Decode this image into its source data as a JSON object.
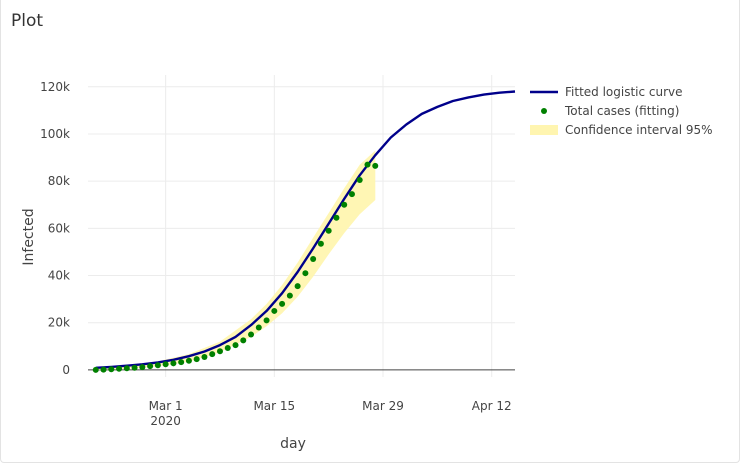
{
  "panel": {
    "title": "Plot",
    "accent_color": "#e8472f"
  },
  "chart_data": {
    "type": "line",
    "xlabel": "day",
    "ylabel": "Infected",
    "x_ticks": [
      {
        "date": "2020-03-01",
        "label": "Mar 1",
        "sublabel": "2020"
      },
      {
        "date": "2020-03-15",
        "label": "Mar 15",
        "sublabel": ""
      },
      {
        "date": "2020-03-29",
        "label": "Mar 29",
        "sublabel": ""
      },
      {
        "date": "2020-04-12",
        "label": "Apr 12",
        "sublabel": ""
      }
    ],
    "xlim": [
      "2020-02-20",
      "2020-04-15"
    ],
    "y_ticks": [
      {
        "value": 0,
        "label": "0"
      },
      {
        "value": 20000,
        "label": "20k"
      },
      {
        "value": 40000,
        "label": "40k"
      },
      {
        "value": 60000,
        "label": "60k"
      },
      {
        "value": 80000,
        "label": "80k"
      },
      {
        "value": 100000,
        "label": "100k"
      },
      {
        "value": 120000,
        "label": "120k"
      }
    ],
    "ylim": [
      -3000,
      125000
    ],
    "grid": true,
    "legend_position": "right",
    "series": [
      {
        "name": "Fitted logistic curve",
        "kind": "line",
        "color": "#00008b",
        "x": [
          "2020-02-21",
          "2020-02-23",
          "2020-02-25",
          "2020-02-27",
          "2020-02-29",
          "2020-03-02",
          "2020-03-04",
          "2020-03-06",
          "2020-03-08",
          "2020-03-10",
          "2020-03-12",
          "2020-03-14",
          "2020-03-16",
          "2020-03-18",
          "2020-03-20",
          "2020-03-22",
          "2020-03-24",
          "2020-03-26",
          "2020-03-28",
          "2020-03-30",
          "2020-04-01",
          "2020-04-03",
          "2020-04-05",
          "2020-04-07",
          "2020-04-09",
          "2020-04-11",
          "2020-04-13",
          "2020-04-15"
        ],
        "y": [
          900,
          1300,
          1800,
          2400,
          3200,
          4300,
          5800,
          7800,
          10500,
          14000,
          19000,
          25000,
          32500,
          41500,
          51500,
          62000,
          72500,
          82500,
          91000,
          98500,
          104000,
          108500,
          111500,
          114000,
          115500,
          116700,
          117500,
          118000
        ]
      },
      {
        "name": "Total cases (fitting)",
        "kind": "markers",
        "color": "#008000",
        "x": [
          "2020-02-21",
          "2020-02-22",
          "2020-02-23",
          "2020-02-24",
          "2020-02-25",
          "2020-02-26",
          "2020-02-27",
          "2020-02-28",
          "2020-02-29",
          "2020-03-01",
          "2020-03-02",
          "2020-03-03",
          "2020-03-04",
          "2020-03-05",
          "2020-03-06",
          "2020-03-07",
          "2020-03-08",
          "2020-03-09",
          "2020-03-10",
          "2020-03-11",
          "2020-03-12",
          "2020-03-13",
          "2020-03-14",
          "2020-03-15",
          "2020-03-16",
          "2020-03-17",
          "2020-03-18",
          "2020-03-19",
          "2020-03-20",
          "2020-03-21",
          "2020-03-22",
          "2020-03-23",
          "2020-03-24",
          "2020-03-25",
          "2020-03-26",
          "2020-03-27",
          "2020-03-28"
        ],
        "y": [
          0,
          150,
          300,
          500,
          700,
          900,
          1200,
          1600,
          2000,
          2400,
          2800,
          3300,
          3900,
          4600,
          5500,
          6700,
          7900,
          9300,
          10500,
          12500,
          15000,
          18000,
          21000,
          25000,
          28000,
          31500,
          35500,
          41000,
          47000,
          53500,
          59000,
          64500,
          70000,
          74500,
          80500,
          87000,
          86500
        ]
      },
      {
        "name": "Confidence interval 95%",
        "kind": "band",
        "color": "#fff5b0",
        "x": [
          "2020-02-21",
          "2020-02-25",
          "2020-02-29",
          "2020-03-04",
          "2020-03-08",
          "2020-03-12",
          "2020-03-14",
          "2020-03-16",
          "2020-03-18",
          "2020-03-20",
          "2020-03-22",
          "2020-03-24",
          "2020-03-26",
          "2020-03-28"
        ],
        "upper": [
          1000,
          2100,
          3700,
          6700,
          12000,
          21500,
          28000,
          36000,
          45500,
          56000,
          66500,
          77000,
          87000,
          93000
        ],
        "lower": [
          0,
          500,
          1500,
          3500,
          7500,
          14000,
          18500,
          24000,
          31000,
          39500,
          49000,
          58000,
          66000,
          72000
        ]
      }
    ]
  }
}
